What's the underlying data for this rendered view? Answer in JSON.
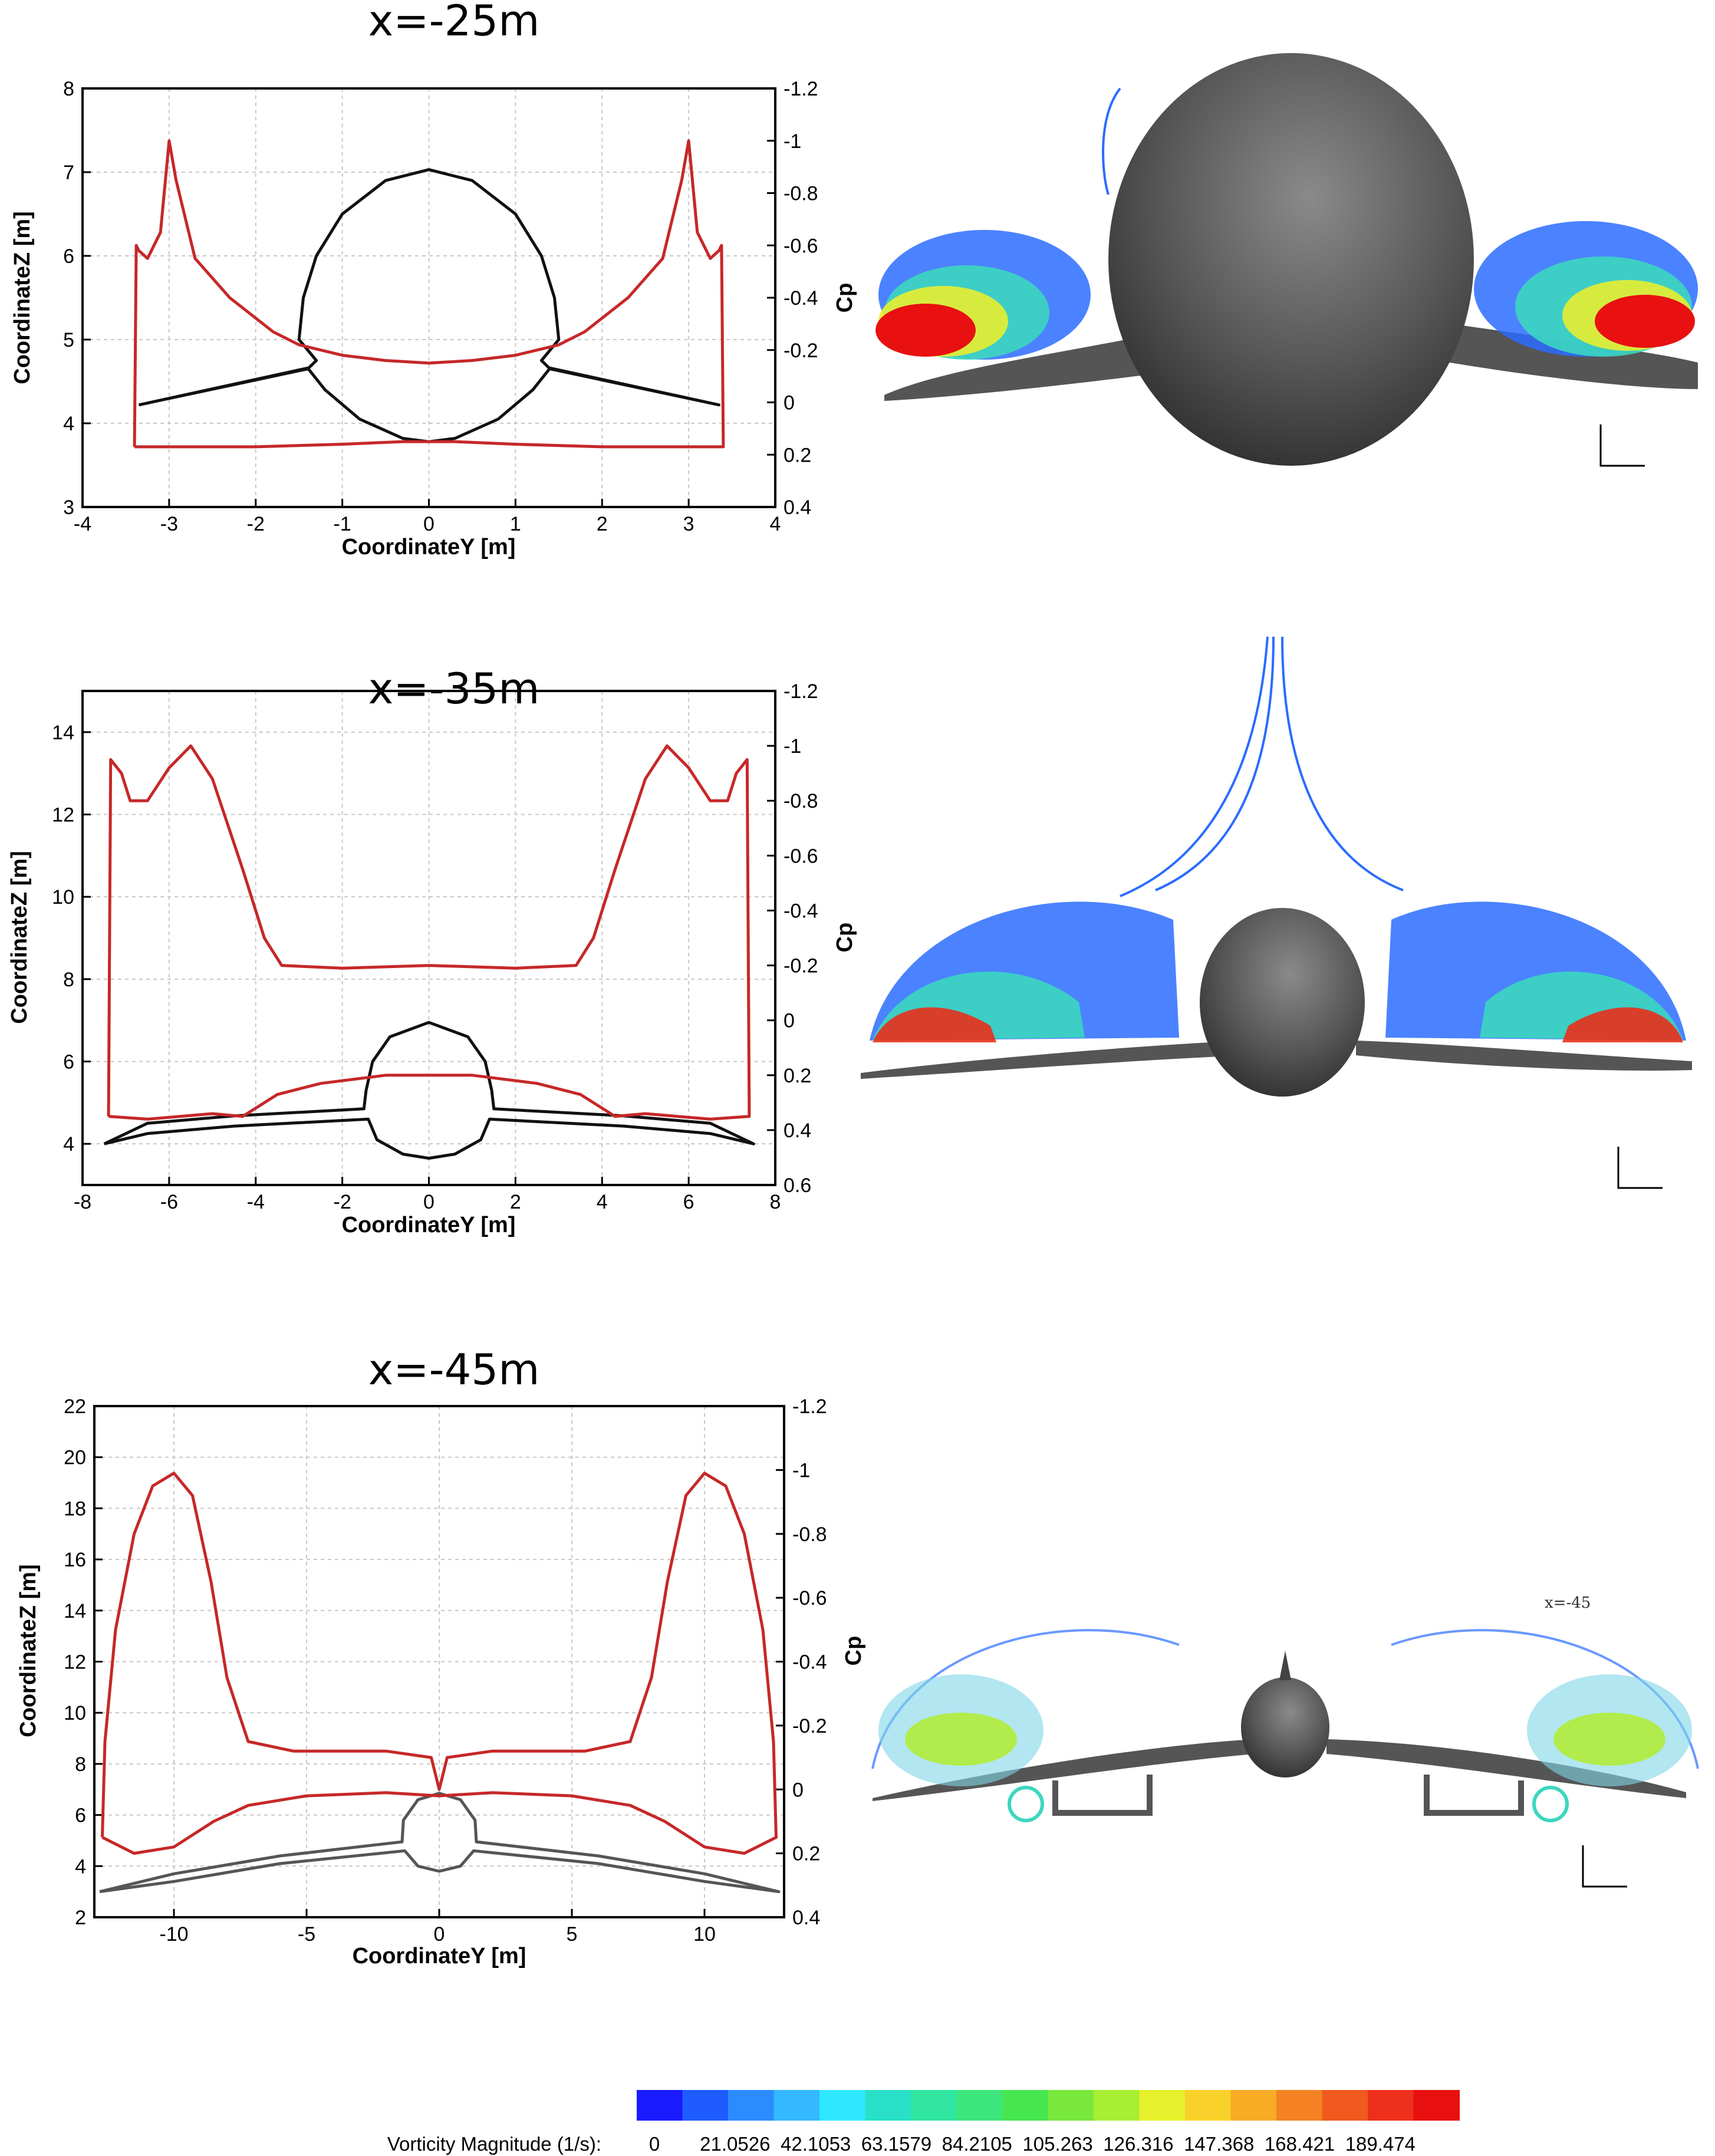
{
  "chart_data": [
    {
      "type": "line",
      "header": "x=-25m",
      "xlabel": "CoordinateY [m]",
      "ylabel": "CoordinateZ [m]",
      "y2label": "Cp",
      "xlim": [
        -4,
        4
      ],
      "ylim": [
        3,
        8
      ],
      "y2lim": [
        -1.2,
        0.4
      ],
      "y2_reversed": true,
      "xticks": [
        "-4",
        "-3",
        "-2",
        "-1",
        "0",
        "1",
        "2",
        "3",
        "4"
      ],
      "yticks": [
        "3",
        "4",
        "5",
        "6",
        "7",
        "8"
      ],
      "y2ticks": [
        "-1.2",
        "-1",
        "-0.8",
        "-0.6",
        "-0.4",
        "-0.2",
        "0",
        "0.2",
        "0.4"
      ],
      "grid": true,
      "series": [
        {
          "role": "geometry",
          "color": "#111111",
          "values": [
            [
              -3.35,
              4.22
            ],
            [
              -1.4,
              4.65
            ],
            [
              -1.3,
              4.75
            ],
            [
              -1.5,
              5.0
            ],
            [
              -1.45,
              5.5
            ],
            [
              -1.3,
              6.0
            ],
            [
              -1.0,
              6.5
            ],
            [
              -0.5,
              6.9
            ],
            [
              0,
              7.03
            ],
            [
              0.5,
              6.9
            ],
            [
              1.0,
              6.5
            ],
            [
              1.3,
              6.0
            ],
            [
              1.45,
              5.5
            ],
            [
              1.5,
              5.0
            ],
            [
              1.3,
              4.75
            ],
            [
              1.4,
              4.65
            ],
            [
              3.35,
              4.22
            ],
            [
              1.4,
              4.66
            ],
            [
              1.2,
              4.4
            ],
            [
              0.8,
              4.05
            ],
            [
              0.3,
              3.82
            ],
            [
              0,
              3.78
            ],
            [
              -0.3,
              3.82
            ],
            [
              -0.8,
              4.05
            ],
            [
              -1.2,
              4.4
            ],
            [
              -1.4,
              4.66
            ],
            [
              -3.35,
              4.22
            ]
          ]
        },
        {
          "role": "Cp",
          "color": "#c62828",
          "values": [
            [
              -3.4,
              0.17
            ],
            [
              -3.38,
              -0.6
            ],
            [
              -3.35,
              -0.58
            ],
            [
              -3.25,
              -0.55
            ],
            [
              -3.1,
              -0.65
            ],
            [
              -3.0,
              -1.0
            ],
            [
              -2.92,
              -0.85
            ],
            [
              -2.7,
              -0.55
            ],
            [
              -2.3,
              -0.4
            ],
            [
              -1.8,
              -0.27
            ],
            [
              -1.5,
              -0.22
            ],
            [
              -1.0,
              -0.18
            ],
            [
              -0.5,
              -0.16
            ],
            [
              0,
              -0.15
            ],
            [
              0.5,
              -0.16
            ],
            [
              1.0,
              -0.18
            ],
            [
              1.5,
              -0.22
            ],
            [
              1.8,
              -0.27
            ],
            [
              2.3,
              -0.4
            ],
            [
              2.7,
              -0.55
            ],
            [
              2.92,
              -0.85
            ],
            [
              3.0,
              -1.0
            ],
            [
              3.1,
              -0.65
            ],
            [
              3.25,
              -0.55
            ],
            [
              3.35,
              -0.58
            ],
            [
              3.38,
              -0.6
            ],
            [
              3.4,
              0.17
            ],
            [
              3.3,
              0.17
            ],
            [
              2.0,
              0.17
            ],
            [
              1.0,
              0.16
            ],
            [
              0.3,
              0.15
            ],
            [
              0,
              0.15
            ],
            [
              -0.3,
              0.15
            ],
            [
              -1.0,
              0.16
            ],
            [
              -2.0,
              0.17
            ],
            [
              -3.3,
              0.17
            ],
            [
              -3.4,
              0.17
            ]
          ]
        }
      ]
    },
    {
      "type": "line",
      "header": "x=-35m",
      "xlabel": "CoordinateY [m]",
      "ylabel": "CoordinateZ [m]",
      "y2label": "Cp",
      "xlim": [
        -8,
        8
      ],
      "ylim": [
        3,
        15
      ],
      "y2lim": [
        -1.2,
        0.6
      ],
      "y2_reversed": true,
      "xticks": [
        "-8",
        "-6",
        "-4",
        "-2",
        "0",
        "2",
        "4",
        "6",
        "8"
      ],
      "yticks": [
        "4",
        "6",
        "8",
        "10",
        "12",
        "14"
      ],
      "y2ticks": [
        "-1.2",
        "-1",
        "-0.8",
        "-0.6",
        "-0.4",
        "-0.2",
        "0",
        "0.2",
        "0.4",
        "0.6"
      ],
      "grid": true,
      "series": [
        {
          "role": "geometry",
          "color": "#111111",
          "values": [
            [
              -7.5,
              4.0
            ],
            [
              -6.5,
              4.5
            ],
            [
              -4.5,
              4.68
            ],
            [
              -1.5,
              4.85
            ],
            [
              -1.45,
              5.3
            ],
            [
              -1.3,
              6.0
            ],
            [
              -0.9,
              6.6
            ],
            [
              0,
              6.95
            ],
            [
              0.9,
              6.6
            ],
            [
              1.3,
              6.0
            ],
            [
              1.45,
              5.3
            ],
            [
              1.5,
              4.85
            ],
            [
              4.5,
              4.68
            ],
            [
              6.5,
              4.5
            ],
            [
              7.5,
              4.0
            ],
            [
              6.5,
              4.25
            ],
            [
              4.5,
              4.43
            ],
            [
              1.4,
              4.6
            ],
            [
              1.2,
              4.1
            ],
            [
              0.6,
              3.75
            ],
            [
              0,
              3.65
            ],
            [
              -0.6,
              3.75
            ],
            [
              -1.2,
              4.1
            ],
            [
              -1.4,
              4.6
            ],
            [
              -4.5,
              4.43
            ],
            [
              -6.5,
              4.25
            ],
            [
              -7.5,
              4.0
            ]
          ]
        },
        {
          "role": "Cp",
          "color": "#c62828",
          "values": [
            [
              -7.4,
              0.35
            ],
            [
              -7.35,
              -0.95
            ],
            [
              -7.1,
              -0.9
            ],
            [
              -6.9,
              -0.8
            ],
            [
              -6.5,
              -0.8
            ],
            [
              -6.0,
              -0.92
            ],
            [
              -5.5,
              -1.0
            ],
            [
              -5.0,
              -0.88
            ],
            [
              -4.3,
              -0.55
            ],
            [
              -3.8,
              -0.3
            ],
            [
              -3.4,
              -0.2
            ],
            [
              -2.0,
              -0.19
            ],
            [
              0,
              -0.2
            ],
            [
              2.0,
              -0.19
            ],
            [
              3.4,
              -0.2
            ],
            [
              3.8,
              -0.3
            ],
            [
              4.3,
              -0.55
            ],
            [
              5.0,
              -0.88
            ],
            [
              5.5,
              -1.0
            ],
            [
              6.0,
              -0.92
            ],
            [
              6.5,
              -0.8
            ],
            [
              6.9,
              -0.8
            ],
            [
              7.1,
              -0.9
            ],
            [
              7.35,
              -0.95
            ],
            [
              7.4,
              0.35
            ],
            [
              6.5,
              0.36
            ],
            [
              5.0,
              0.34
            ],
            [
              4.3,
              0.35
            ],
            [
              3.5,
              0.27
            ],
            [
              2.5,
              0.23
            ],
            [
              1.0,
              0.2
            ],
            [
              0,
              0.2
            ],
            [
              -1.0,
              0.2
            ],
            [
              -2.5,
              0.23
            ],
            [
              -3.5,
              0.27
            ],
            [
              -4.3,
              0.35
            ],
            [
              -5.0,
              0.34
            ],
            [
              -6.5,
              0.36
            ],
            [
              -7.4,
              0.35
            ]
          ]
        }
      ]
    },
    {
      "type": "line",
      "header": "x=-45m",
      "xlabel": "CoordinateY [m]",
      "ylabel": "CoordinateZ [m]",
      "y2label": "Cp",
      "xlim": [
        -13,
        13
      ],
      "ylim": [
        2,
        22
      ],
      "y2lim": [
        -1.2,
        0.4
      ],
      "y2_reversed": true,
      "xticks": [
        "-10",
        "-5",
        "0",
        "5",
        "10"
      ],
      "yticks": [
        "2",
        "4",
        "6",
        "8",
        "10",
        "12",
        "14",
        "16",
        "18",
        "20",
        "22"
      ],
      "y2ticks": [
        "-1.2",
        "-1",
        "-0.8",
        "-0.6",
        "-0.4",
        "-0.2",
        "0",
        "0.2",
        "0.4"
      ],
      "grid": true,
      "series": [
        {
          "role": "geometry",
          "color": "#555555",
          "values": [
            [
              -12.8,
              3.0
            ],
            [
              -10,
              3.7
            ],
            [
              -6,
              4.4
            ],
            [
              -1.4,
              4.95
            ],
            [
              -1.35,
              5.8
            ],
            [
              -0.8,
              6.6
            ],
            [
              0,
              6.85
            ],
            [
              0.8,
              6.6
            ],
            [
              1.35,
              5.8
            ],
            [
              1.4,
              4.95
            ],
            [
              6,
              4.4
            ],
            [
              10,
              3.7
            ],
            [
              12.8,
              3.0
            ],
            [
              10,
              3.4
            ],
            [
              6,
              4.1
            ],
            [
              1.3,
              4.6
            ],
            [
              0.8,
              4.0
            ],
            [
              0,
              3.8
            ],
            [
              -0.8,
              4.0
            ],
            [
              -1.3,
              4.6
            ],
            [
              -6,
              4.1
            ],
            [
              -10,
              3.4
            ],
            [
              -12.8,
              3.0
            ]
          ]
        },
        {
          "role": "Cp",
          "color": "#c62828",
          "values": [
            [
              -12.7,
              0.15
            ],
            [
              -12.6,
              -0.15
            ],
            [
              -12.2,
              -0.5
            ],
            [
              -11.5,
              -0.8
            ],
            [
              -10.8,
              -0.95
            ],
            [
              -10,
              -0.99
            ],
            [
              -9.3,
              -0.92
            ],
            [
              -8.6,
              -0.65
            ],
            [
              -8.0,
              -0.35
            ],
            [
              -7.2,
              -0.15
            ],
            [
              -5.5,
              -0.12
            ],
            [
              -2.0,
              -0.12
            ],
            [
              -0.3,
              -0.1
            ],
            [
              0,
              0.0
            ],
            [
              0.3,
              -0.1
            ],
            [
              2.0,
              -0.12
            ],
            [
              5.5,
              -0.12
            ],
            [
              7.2,
              -0.15
            ],
            [
              8.0,
              -0.35
            ],
            [
              8.6,
              -0.65
            ],
            [
              9.3,
              -0.92
            ],
            [
              10,
              -0.99
            ],
            [
              10.8,
              -0.95
            ],
            [
              11.5,
              -0.8
            ],
            [
              12.2,
              -0.5
            ],
            [
              12.6,
              -0.15
            ],
            [
              12.7,
              0.15
            ],
            [
              11.5,
              0.2
            ],
            [
              10,
              0.18
            ],
            [
              8.5,
              0.1
            ],
            [
              7.2,
              0.05
            ],
            [
              5.0,
              0.02
            ],
            [
              2.0,
              0.01
            ],
            [
              0,
              0.02
            ],
            [
              -2.0,
              0.01
            ],
            [
              -5.0,
              0.02
            ],
            [
              -7.2,
              0.05
            ],
            [
              -8.5,
              0.1
            ],
            [
              -10,
              0.18
            ],
            [
              -11.5,
              0.2
            ],
            [
              -12.7,
              0.15
            ]
          ]
        }
      ]
    }
  ],
  "colorbar": {
    "label": "Vorticity Magnitude (1/s):",
    "ticks": [
      "0",
      "21.0526",
      "42.1053",
      "63.1579",
      "84.2105",
      "105.263",
      "126.316",
      "147.368",
      "168.421",
      "189.474"
    ],
    "colors": [
      "#1a1aff",
      "#1f5cff",
      "#2a8cff",
      "#34b8ff",
      "#2fe8ff",
      "#28e0c8",
      "#30e6a0",
      "#3ce67c",
      "#46e650",
      "#78e83c",
      "#a8ee32",
      "#e6f02c",
      "#f8d22a",
      "#f8ac26",
      "#f48222",
      "#f05a1e",
      "#ec301c",
      "#e81010"
    ]
  },
  "renders": [
    {
      "view": "x=-25m"
    },
    {
      "view": "x=-35m"
    },
    {
      "view": "x=-45m",
      "caption": "x=-45"
    }
  ]
}
